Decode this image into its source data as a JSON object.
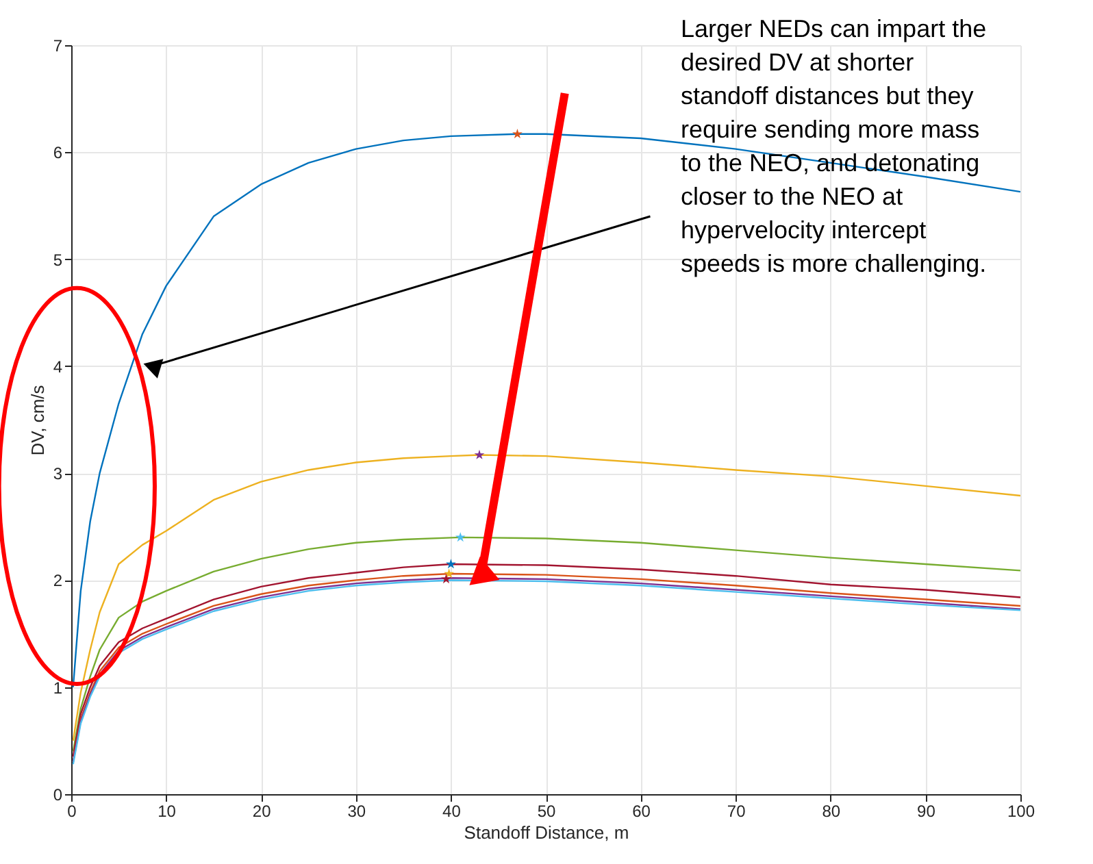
{
  "chart_data": {
    "type": "line",
    "xlabel": "Standoff Distance, m",
    "ylabel": "DV, cm/s",
    "xlim": [
      0,
      100
    ],
    "xticks": [
      0,
      10,
      20,
      30,
      40,
      50,
      60,
      70,
      80,
      90,
      100
    ],
    "ylim": [
      0,
      7
    ],
    "yticks": [
      0,
      1,
      2,
      3,
      4,
      5,
      6,
      7
    ],
    "grid": true,
    "line_style": "solid",
    "annotations": [
      "Larger NEDs can impart the\ndesired DV at shorter\nstandoff distances but they\nrequire sending more mass\nto the NEO, and detonating\ncloser to the NEO at\nhypervelocity intercept\nspeeds is more challenging."
    ],
    "series": [
      {
        "color": "#0072bd",
        "x": [
          0.2,
          1,
          2,
          3,
          5,
          7.5,
          10,
          15,
          20,
          25,
          30,
          35,
          40,
          47,
          50,
          60,
          70,
          80,
          90,
          100
        ],
        "values": [
          1.0,
          1.9,
          2.55,
          3.0,
          3.65,
          4.3,
          4.75,
          5.4,
          5.7,
          5.9,
          6.03,
          6.11,
          6.15,
          6.17,
          6.17,
          6.13,
          6.03,
          5.9,
          5.77,
          5.63
        ]
      },
      {
        "color": "#edb120",
        "x": [
          0.2,
          1,
          2,
          3,
          5,
          7.5,
          10,
          15,
          20,
          25,
          30,
          35,
          40,
          43,
          50,
          60,
          70,
          80,
          90,
          100
        ],
        "values": [
          0.5,
          0.95,
          1.35,
          1.7,
          2.15,
          2.33,
          2.46,
          2.75,
          2.92,
          3.03,
          3.1,
          3.14,
          3.16,
          3.17,
          3.16,
          3.1,
          3.03,
          2.97,
          2.88,
          2.79
        ]
      },
      {
        "color": "#77ac30",
        "x": [
          0.2,
          1,
          2,
          3,
          5,
          7.5,
          10,
          15,
          20,
          25,
          30,
          35,
          41,
          50,
          60,
          70,
          80,
          90,
          100
        ],
        "values": [
          0.4,
          0.8,
          1.1,
          1.35,
          1.65,
          1.8,
          1.9,
          2.08,
          2.2,
          2.29,
          2.35,
          2.38,
          2.4,
          2.39,
          2.35,
          2.28,
          2.21,
          2.15,
          2.09
        ]
      },
      {
        "color": "#a2142f",
        "x": [
          0.2,
          1,
          2,
          3,
          5,
          7.5,
          10,
          15,
          20,
          25,
          30,
          35,
          40,
          50,
          60,
          70,
          80,
          90,
          100
        ],
        "values": [
          0.35,
          0.75,
          1.0,
          1.2,
          1.42,
          1.55,
          1.64,
          1.82,
          1.94,
          2.02,
          2.07,
          2.12,
          2.15,
          2.14,
          2.1,
          2.04,
          1.96,
          1.91,
          1.84
        ]
      },
      {
        "color": "#d95319",
        "x": [
          0.2,
          1,
          2,
          3,
          5,
          7.5,
          10,
          15,
          20,
          25,
          30,
          35,
          40,
          50,
          60,
          70,
          80,
          90,
          100
        ],
        "values": [
          0.3,
          0.7,
          0.95,
          1.15,
          1.37,
          1.5,
          1.59,
          1.76,
          1.87,
          1.95,
          2.0,
          2.04,
          2.06,
          2.05,
          2.01,
          1.95,
          1.88,
          1.82,
          1.76
        ]
      },
      {
        "color": "#7e2f8e",
        "x": [
          0.2,
          1,
          2,
          3,
          5,
          7.5,
          10,
          15,
          20,
          25,
          30,
          35,
          40,
          50,
          60,
          70,
          80,
          90,
          100
        ],
        "values": [
          0.3,
          0.68,
          0.93,
          1.12,
          1.34,
          1.47,
          1.56,
          1.73,
          1.84,
          1.92,
          1.97,
          2.0,
          2.02,
          2.01,
          1.97,
          1.91,
          1.85,
          1.79,
          1.73
        ]
      },
      {
        "color": "#4dbeee",
        "x": [
          0.2,
          1,
          2,
          3,
          5,
          7.5,
          10,
          15,
          20,
          25,
          30,
          35,
          40,
          50,
          60,
          70,
          80,
          90,
          100
        ],
        "values": [
          0.28,
          0.66,
          0.91,
          1.1,
          1.32,
          1.45,
          1.54,
          1.71,
          1.82,
          1.9,
          1.95,
          1.98,
          2.0,
          1.99,
          1.95,
          1.89,
          1.83,
          1.77,
          1.72
        ]
      },
      {
        "type": "scatter",
        "marker": "star",
        "color": "#d95319",
        "x": [
          47
        ],
        "values": [
          6.17
        ]
      },
      {
        "type": "scatter",
        "marker": "star",
        "color": "#7e2f8e",
        "x": [
          43
        ],
        "values": [
          3.17
        ]
      },
      {
        "type": "scatter",
        "marker": "star",
        "color": "#4dbeee",
        "x": [
          41
        ],
        "values": [
          2.4
        ]
      },
      {
        "type": "scatter",
        "marker": "star",
        "color": "#0072bd",
        "x": [
          40
        ],
        "values": [
          2.15
        ]
      },
      {
        "type": "scatter",
        "marker": "star",
        "color": "#edb120",
        "x": [
          39.8
        ],
        "values": [
          2.06
        ]
      },
      {
        "type": "scatter",
        "marker": "star",
        "color": "#a2142f",
        "x": [
          39.5
        ],
        "values": [
          2.01
        ]
      }
    ]
  }
}
